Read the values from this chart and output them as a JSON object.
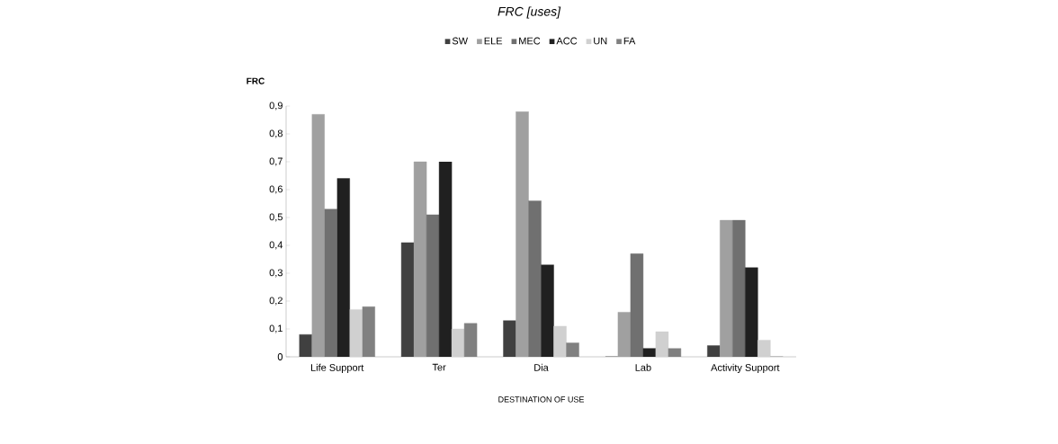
{
  "chart_data": {
    "type": "bar",
    "title": "FRC [uses]",
    "ylabel": "FRC",
    "xlabel": "DESTINATION OF USE",
    "categories": [
      "Life Support",
      "Ter",
      "Dia",
      "Lab",
      "Activity Support"
    ],
    "series": [
      {
        "name": "SW",
        "color": "#404040",
        "values": [
          0.08,
          0.41,
          0.13,
          0,
          0.04
        ]
      },
      {
        "name": "ELE",
        "color": "#a0a0a0",
        "values": [
          0.87,
          0.7,
          0.88,
          0.16,
          0.49
        ]
      },
      {
        "name": "MEC",
        "color": "#707070",
        "values": [
          0.53,
          0.51,
          0.56,
          0.37,
          0.49
        ]
      },
      {
        "name": "ACC",
        "color": "#202020",
        "values": [
          0.64,
          0.7,
          0.33,
          0.03,
          0.32
        ]
      },
      {
        "name": "UN",
        "color": "#d0d0d0",
        "values": [
          0.17,
          0.1,
          0.11,
          0.09,
          0.06
        ]
      },
      {
        "name": "FA",
        "color": "#808080",
        "values": [
          0.18,
          0.12,
          0.05,
          0.03,
          0
        ]
      }
    ],
    "ylim": [
      0,
      0.9
    ],
    "yticks": [
      {
        "value": 0,
        "label": "0"
      },
      {
        "value": 0.1,
        "label": "0,1"
      },
      {
        "value": 0.2,
        "label": "0,2"
      },
      {
        "value": 0.3,
        "label": "0,3"
      },
      {
        "value": 0.4,
        "label": "0,4"
      },
      {
        "value": 0.5,
        "label": "0,5"
      },
      {
        "value": 0.6,
        "label": "0,6"
      },
      {
        "value": 0.7,
        "label": "0,7"
      },
      {
        "value": 0.8,
        "label": "0,8"
      },
      {
        "value": 0.9,
        "label": "0,9"
      }
    ],
    "legend": "top"
  }
}
